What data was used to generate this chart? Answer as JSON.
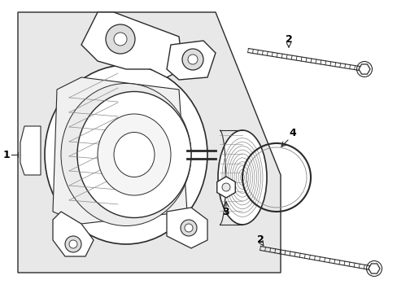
{
  "bg_gray": "#e8e8e8",
  "bg_white": "#ffffff",
  "line_dark": "#2a2a2a",
  "line_med": "#555555",
  "line_light": "#888888",
  "label_fs": 9,
  "figsize": [
    4.89,
    3.6
  ],
  "dpi": 100
}
